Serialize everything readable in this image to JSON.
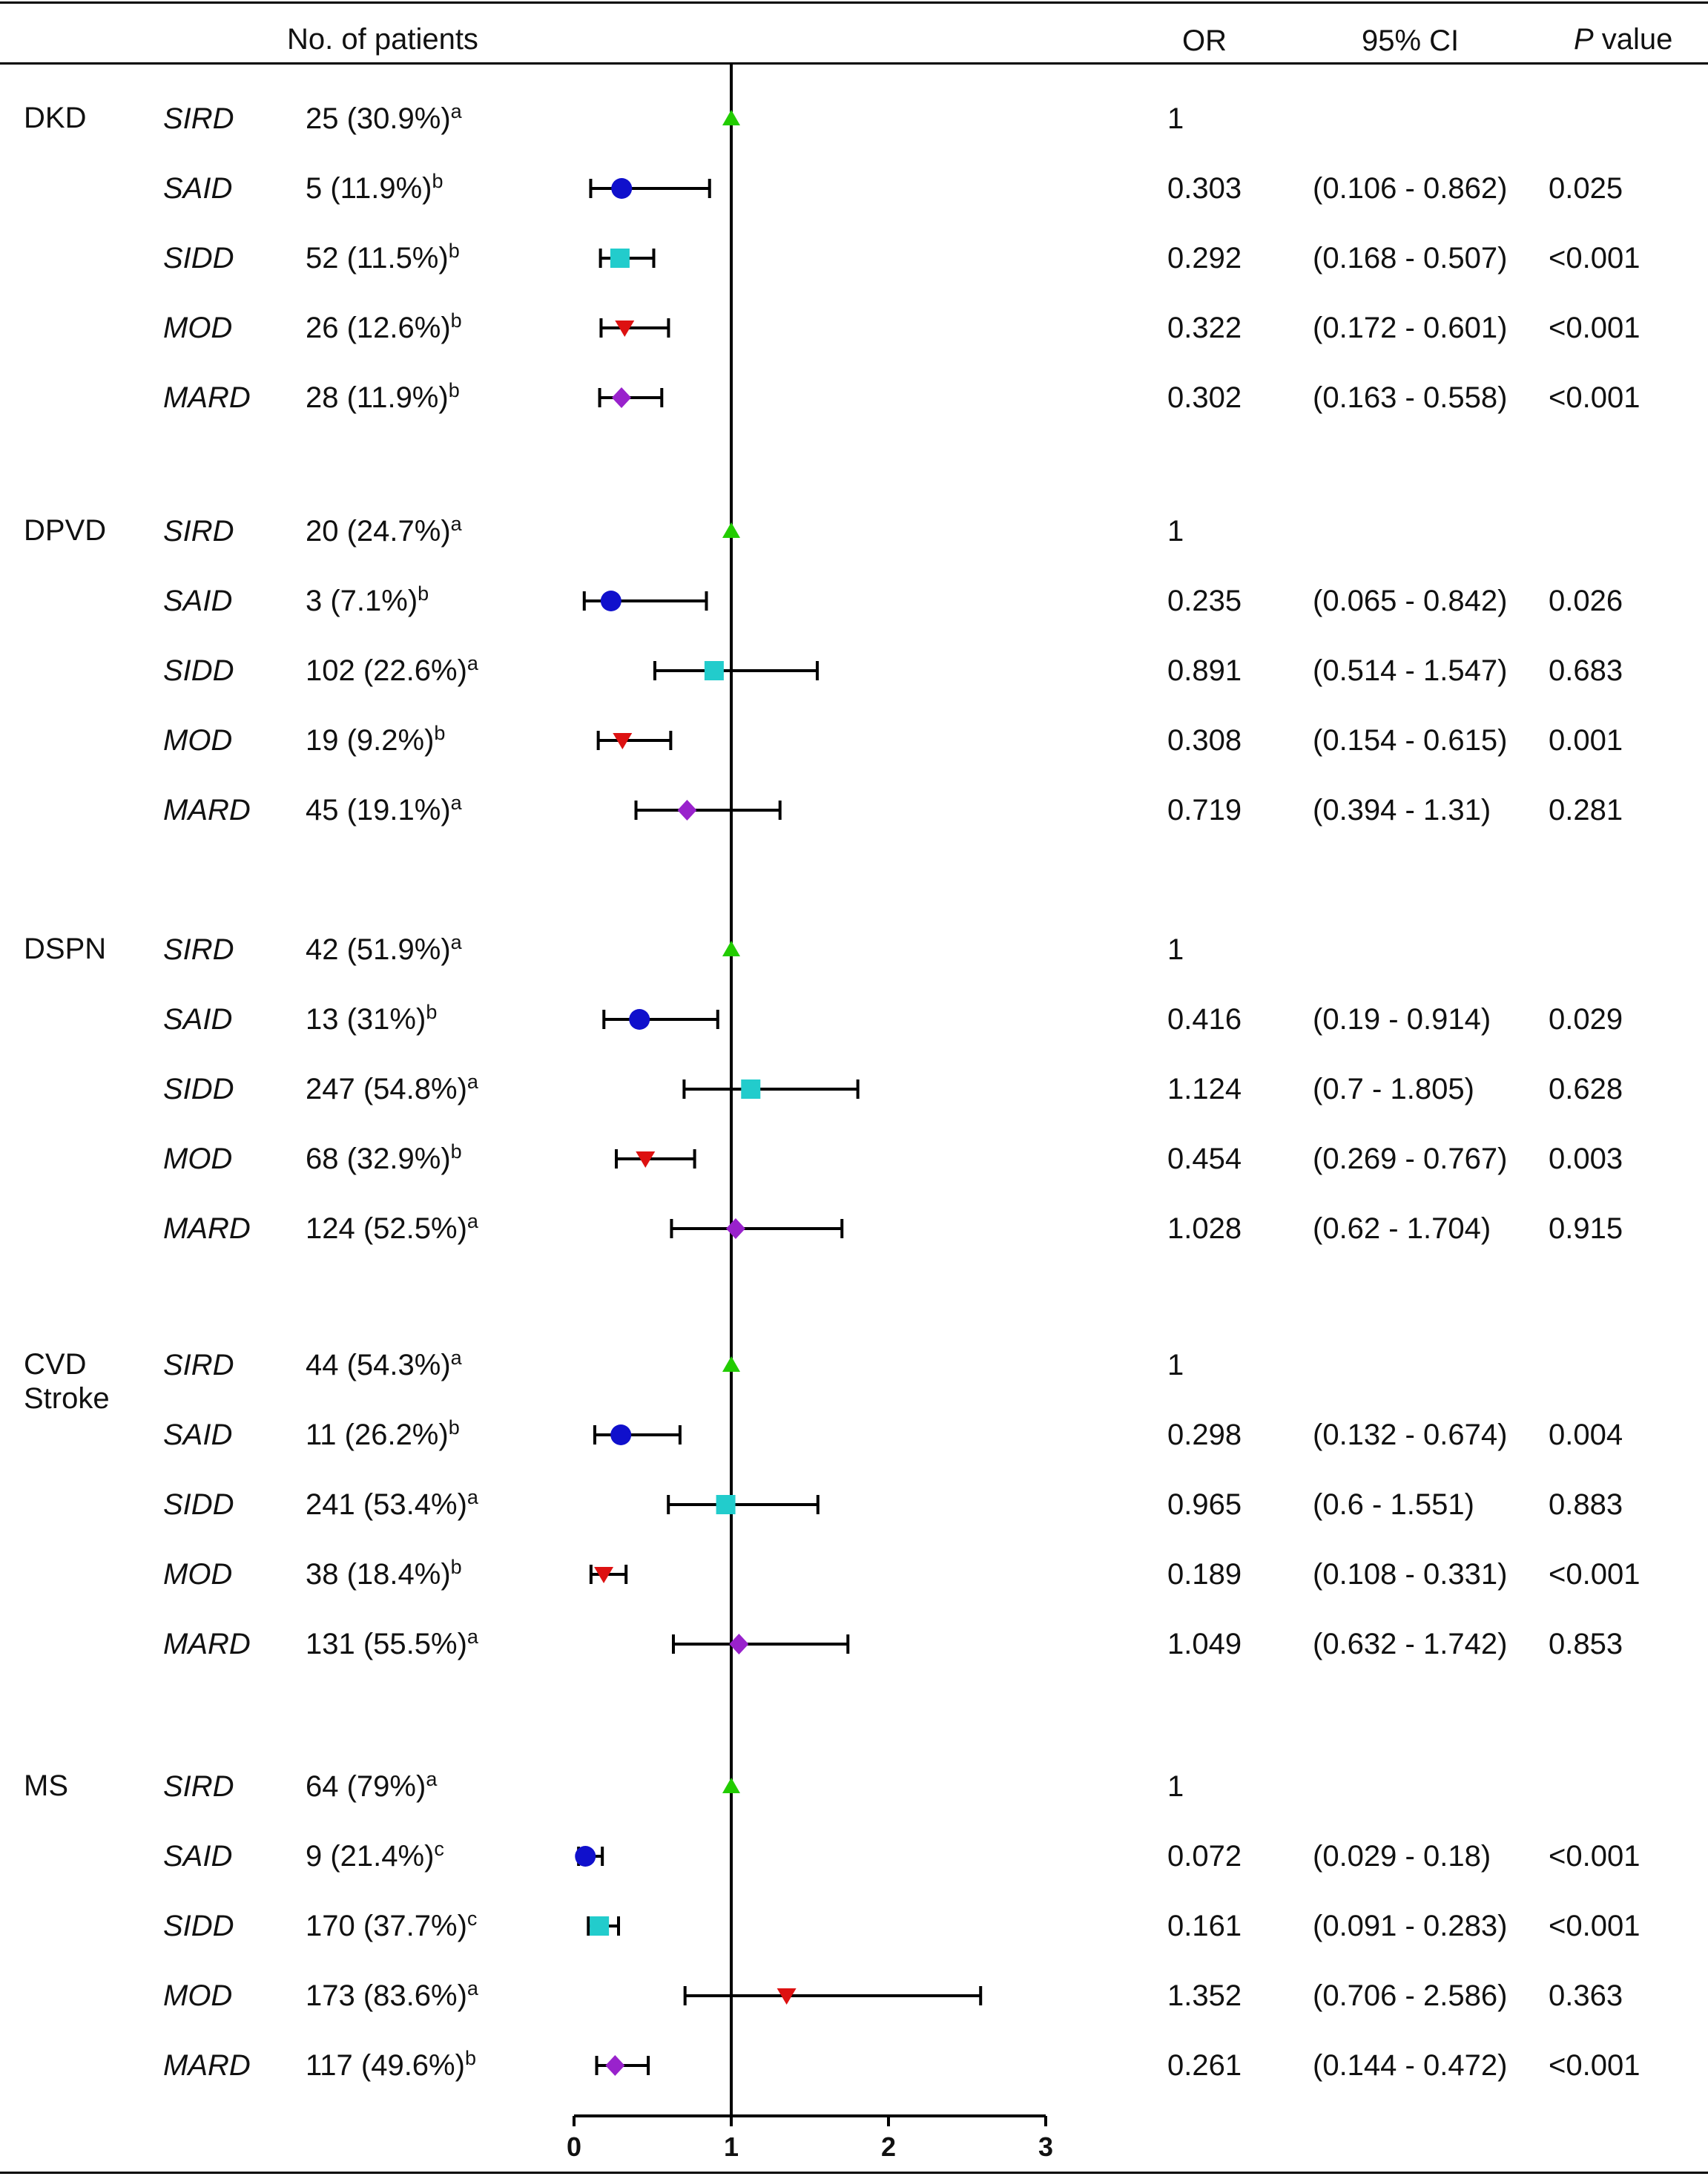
{
  "headers": {
    "patients": "No. of patients",
    "or": "OR",
    "ci": "95% CI",
    "p_italic": "P",
    "p_rest": " value"
  },
  "groups": [
    {
      "label": "DKD",
      "rows": [
        {
          "subtype": "SIRD",
          "n": "25 (30.9%)",
          "sup": "a",
          "or": "1",
          "ci": "",
          "p": ""
        },
        {
          "subtype": "SAID",
          "n": "5 (11.9%)",
          "sup": "b",
          "or": "0.303",
          "ci": "(0.106 - 0.862)",
          "p": "0.025"
        },
        {
          "subtype": "SIDD",
          "n": "52 (11.5%)",
          "sup": "b",
          "or": "0.292",
          "ci": "(0.168 - 0.507)",
          "p": "<0.001"
        },
        {
          "subtype": "MOD",
          "n": "26 (12.6%)",
          "sup": "b",
          "or": "0.322",
          "ci": "(0.172 - 0.601)",
          "p": "<0.001"
        },
        {
          "subtype": "MARD",
          "n": "28 (11.9%)",
          "sup": "b",
          "or": "0.302",
          "ci": "(0.163 - 0.558)",
          "p": "<0.001"
        }
      ]
    },
    {
      "label": "DPVD",
      "rows": [
        {
          "subtype": "SIRD",
          "n": "20 (24.7%)",
          "sup": "a",
          "or": "1",
          "ci": "",
          "p": ""
        },
        {
          "subtype": "SAID",
          "n": "3 (7.1%)",
          "sup": "b",
          "or": "0.235",
          "ci": "(0.065 - 0.842)",
          "p": "0.026"
        },
        {
          "subtype": "SIDD",
          "n": "102 (22.6%)",
          "sup": "a",
          "or": "0.891",
          "ci": "(0.514 - 1.547)",
          "p": "0.683"
        },
        {
          "subtype": "MOD",
          "n": "19 (9.2%)",
          "sup": "b",
          "or": "0.308",
          "ci": "(0.154 - 0.615)",
          "p": "0.001"
        },
        {
          "subtype": "MARD",
          "n": "45 (19.1%)",
          "sup": "a",
          "or": "0.719",
          "ci": "(0.394 - 1.31)",
          "p": "0.281"
        }
      ]
    },
    {
      "label": "DSPN",
      "rows": [
        {
          "subtype": "SIRD",
          "n": "42 (51.9%)",
          "sup": "a",
          "or": "1",
          "ci": "",
          "p": ""
        },
        {
          "subtype": "SAID",
          "n": "13 (31%)",
          "sup": "b",
          "or": "0.416",
          "ci": "(0.19 - 0.914)",
          "p": "0.029"
        },
        {
          "subtype": "SIDD",
          "n": "247 (54.8%)",
          "sup": "a",
          "or": "1.124",
          "ci": "(0.7 - 1.805)",
          "p": "0.628"
        },
        {
          "subtype": "MOD",
          "n": "68 (32.9%)",
          "sup": "b",
          "or": "0.454",
          "ci": "(0.269 - 0.767)",
          "p": "0.003"
        },
        {
          "subtype": "MARD",
          "n": "124 (52.5%)",
          "sup": "a",
          "or": "1.028",
          "ci": "(0.62 - 1.704)",
          "p": "0.915"
        }
      ]
    },
    {
      "label": "CVD\nStroke",
      "rows": [
        {
          "subtype": "SIRD",
          "n": "44 (54.3%)",
          "sup": "a",
          "or": "1",
          "ci": "",
          "p": ""
        },
        {
          "subtype": "SAID",
          "n": "11 (26.2%)",
          "sup": "b",
          "or": "0.298",
          "ci": "(0.132 - 0.674)",
          "p": "0.004"
        },
        {
          "subtype": "SIDD",
          "n": "241 (53.4%)",
          "sup": "a",
          "or": "0.965",
          "ci": "(0.6 - 1.551)",
          "p": "0.883"
        },
        {
          "subtype": "MOD",
          "n": "38 (18.4%)",
          "sup": "b",
          "or": "0.189",
          "ci": "(0.108 - 0.331)",
          "p": "<0.001"
        },
        {
          "subtype": "MARD",
          "n": "131 (55.5%)",
          "sup": "a",
          "or": "1.049",
          "ci": "(0.632 - 1.742)",
          "p": "0.853"
        }
      ]
    },
    {
      "label": "MS",
      "rows": [
        {
          "subtype": "SIRD",
          "n": "64 (79%)",
          "sup": "a",
          "or": "1",
          "ci": "",
          "p": ""
        },
        {
          "subtype": "SAID",
          "n": "9 (21.4%)",
          "sup": "c",
          "or": "0.072",
          "ci": "(0.029 - 0.18)",
          "p": "<0.001"
        },
        {
          "subtype": "SIDD",
          "n": "170 (37.7%)",
          "sup": "c",
          "or": "0.161",
          "ci": "(0.091 - 0.283)",
          "p": "<0.001"
        },
        {
          "subtype": "MOD",
          "n": "173 (83.6%)",
          "sup": "a",
          "or": "1.352",
          "ci": "(0.706 - 2.586)",
          "p": "0.363"
        },
        {
          "subtype": "MARD",
          "n": "117 (49.6%)",
          "sup": "b",
          "or": "0.261",
          "ci": "(0.144 - 0.472)",
          "p": "<0.001"
        }
      ]
    }
  ],
  "subtype_styles": {
    "SIRD": {
      "marker": "triangle-up",
      "color": "#22cc00"
    },
    "SAID": {
      "marker": "circle",
      "color": "#1010cc"
    },
    "SIDD": {
      "marker": "square",
      "color": "#22cccc"
    },
    "MOD": {
      "marker": "triangle-down",
      "color": "#dd1111"
    },
    "MARD": {
      "marker": "diamond",
      "color": "#9922cc"
    }
  },
  "chart_data": {
    "type": "forest",
    "xlim": [
      0,
      3
    ],
    "xticks": [
      "0",
      "1",
      "2",
      "3"
    ],
    "reference_line": 1,
    "series": [
      {
        "group": "DKD",
        "points": [
          {
            "subtype": "SIRD",
            "or": 1,
            "lo": null,
            "hi": null
          },
          {
            "subtype": "SAID",
            "or": 0.303,
            "lo": 0.106,
            "hi": 0.862
          },
          {
            "subtype": "SIDD",
            "or": 0.292,
            "lo": 0.168,
            "hi": 0.507
          },
          {
            "subtype": "MOD",
            "or": 0.322,
            "lo": 0.172,
            "hi": 0.601
          },
          {
            "subtype": "MARD",
            "or": 0.302,
            "lo": 0.163,
            "hi": 0.558
          }
        ]
      },
      {
        "group": "DPVD",
        "points": [
          {
            "subtype": "SIRD",
            "or": 1,
            "lo": null,
            "hi": null
          },
          {
            "subtype": "SAID",
            "or": 0.235,
            "lo": 0.065,
            "hi": 0.842
          },
          {
            "subtype": "SIDD",
            "or": 0.891,
            "lo": 0.514,
            "hi": 1.547
          },
          {
            "subtype": "MOD",
            "or": 0.308,
            "lo": 0.154,
            "hi": 0.615
          },
          {
            "subtype": "MARD",
            "or": 0.719,
            "lo": 0.394,
            "hi": 1.31
          }
        ]
      },
      {
        "group": "DSPN",
        "points": [
          {
            "subtype": "SIRD",
            "or": 1,
            "lo": null,
            "hi": null
          },
          {
            "subtype": "SAID",
            "or": 0.416,
            "lo": 0.19,
            "hi": 0.914
          },
          {
            "subtype": "SIDD",
            "or": 1.124,
            "lo": 0.7,
            "hi": 1.805
          },
          {
            "subtype": "MOD",
            "or": 0.454,
            "lo": 0.269,
            "hi": 0.767
          },
          {
            "subtype": "MARD",
            "or": 1.028,
            "lo": 0.62,
            "hi": 1.704
          }
        ]
      },
      {
        "group": "CVD Stroke",
        "points": [
          {
            "subtype": "SIRD",
            "or": 1,
            "lo": null,
            "hi": null
          },
          {
            "subtype": "SAID",
            "or": 0.298,
            "lo": 0.132,
            "hi": 0.674
          },
          {
            "subtype": "SIDD",
            "or": 0.965,
            "lo": 0.6,
            "hi": 1.551
          },
          {
            "subtype": "MOD",
            "or": 0.189,
            "lo": 0.108,
            "hi": 0.331
          },
          {
            "subtype": "MARD",
            "or": 1.049,
            "lo": 0.632,
            "hi": 1.742
          }
        ]
      },
      {
        "group": "MS",
        "points": [
          {
            "subtype": "SIRD",
            "or": 1,
            "lo": null,
            "hi": null
          },
          {
            "subtype": "SAID",
            "or": 0.072,
            "lo": 0.029,
            "hi": 0.18
          },
          {
            "subtype": "SIDD",
            "or": 0.161,
            "lo": 0.091,
            "hi": 0.283
          },
          {
            "subtype": "MOD",
            "or": 1.352,
            "lo": 0.706,
            "hi": 2.586
          },
          {
            "subtype": "MARD",
            "or": 0.261,
            "lo": 0.144,
            "hi": 0.472
          }
        ]
      }
    ]
  }
}
